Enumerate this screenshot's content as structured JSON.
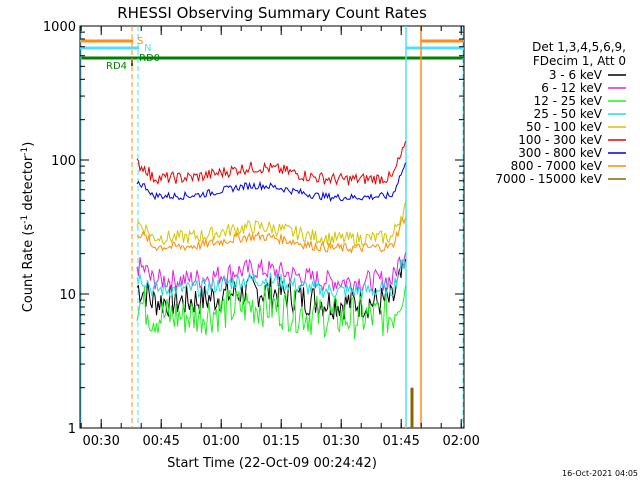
{
  "chart_data": {
    "type": "line",
    "title": "RHESSI Observing Summary Count Rates",
    "xlabel": "Start Time (22-Oct-09 00:24:42)",
    "ylabel_main": "Count Rate (s",
    "ylabel_sup1": "-1",
    "ylabel_mid": " detector",
    "ylabel_sup2": "-1",
    "ylabel_end": ")",
    "yscale": "log",
    "ylim": [
      1,
      1000
    ],
    "xlim": [
      "00:24:42",
      "02:00:42"
    ],
    "x_ticks": [
      "00:30",
      "00:45",
      "01:00",
      "01:15",
      "01:30",
      "01:45",
      "02:00"
    ],
    "y_ticks": [
      "1",
      "10",
      "100",
      "1000"
    ],
    "legend_header": [
      "Det 1,3,4,5,6,9,",
      "FDecim 1, Att 0"
    ],
    "timestamp": "16-Oct-2021 04:05",
    "flags": {
      "s": "S",
      "n": "N",
      "rd4": "RD4",
      "rd0": "RD0"
    },
    "series": [
      {
        "name": "3 - 6 keV",
        "color": "#000000",
        "base": 9,
        "spread": 0.14
      },
      {
        "name": "6 - 12 keV",
        "color": "#e022e0",
        "base": 13,
        "spread": 0.09
      },
      {
        "name": "12 - 25 keV",
        "color": "#22ee22",
        "base": 7,
        "spread": 0.18
      },
      {
        "name": "25 - 50 keV",
        "color": "#22dddd",
        "base": 11,
        "spread": 0.07
      },
      {
        "name": "50 - 100 keV",
        "color": "#d4c400",
        "base": 27,
        "spread": 0.06
      },
      {
        "name": "100 - 300 keV",
        "color": "#e80000",
        "base": 75,
        "spread": 0.05
      },
      {
        "name": "300 - 800 keV",
        "color": "#0000e0",
        "base": 55,
        "spread": 0.03
      },
      {
        "name": "800 - 7000 keV",
        "color": "#ff8c00",
        "base": 23,
        "spread": 0.04
      },
      {
        "name": "7000 - 15000 keV",
        "color": "#8b6500",
        "base": 2,
        "spread": 0.0
      }
    ],
    "colors": {
      "axis": "#000000",
      "saa_line": "#ff8c1a",
      "night_line": "#4ddfff",
      "decimation": "#008000"
    }
  }
}
